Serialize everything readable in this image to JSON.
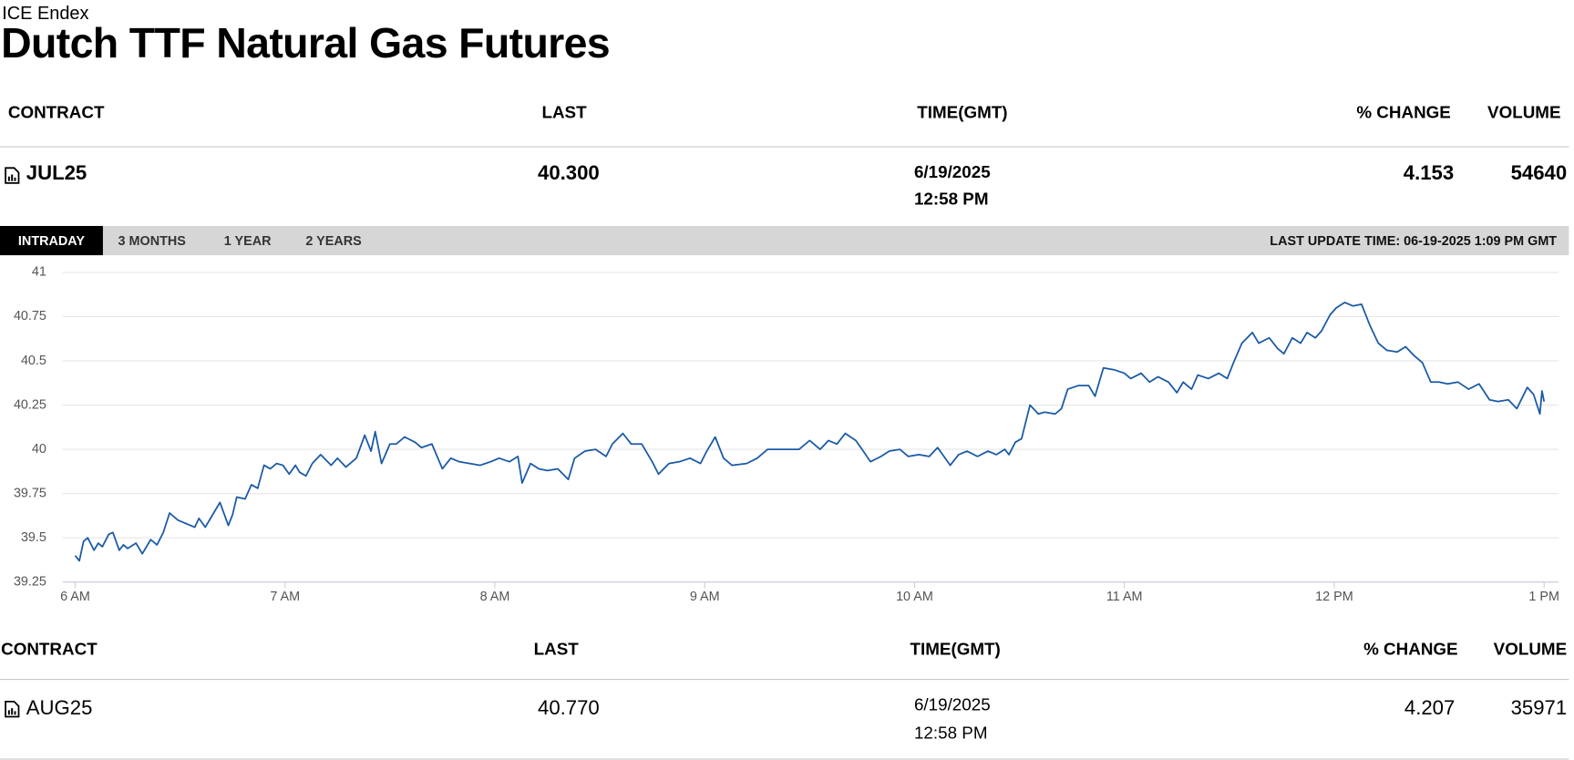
{
  "header": {
    "exchange": "ICE Endex",
    "title": "Dutch TTF Natural Gas Futures"
  },
  "quotes": [
    {
      "columns": [
        "CONTRACT",
        "LAST",
        "TIME(GMT)",
        "% CHANGE",
        "VOLUME"
      ],
      "contract": "JUL25",
      "last": "40.300",
      "date": "6/19/2025",
      "time": "12:58 PM",
      "change": 4.153,
      "volume": 54640
    },
    {
      "columns": [
        "CONTRACT",
        "LAST",
        "TIME(GMT)",
        "% CHANGE",
        "VOLUME"
      ],
      "contract": "AUG25",
      "last": "40.770",
      "date": "6/19/2025",
      "time": "12:58 PM",
      "change": 4.207,
      "volume": 35971
    }
  ],
  "tabs": [
    "INTRADAY",
    "3 MONTHS",
    "1 YEAR",
    "2 YEARS"
  ],
  "active_tab": 0,
  "last_update": "LAST UPDATE TIME: 06-19-2025 1:09 PM GMT",
  "chart_data": {
    "type": "line",
    "color": "#1a5aa6",
    "grid": true,
    "xlim": [
      5.94,
      13.07
    ],
    "xticks": [
      {
        "value": 6,
        "label": "6 AM"
      },
      {
        "value": 7,
        "label": "7 AM"
      },
      {
        "value": 8,
        "label": "8 AM"
      },
      {
        "value": 9,
        "label": "9 AM"
      },
      {
        "value": 10,
        "label": "10 AM"
      },
      {
        "value": 11,
        "label": "11 AM"
      },
      {
        "value": 12,
        "label": "12 PM"
      },
      {
        "value": 13,
        "label": "1 PM"
      }
    ],
    "ylim": [
      39.25,
      41
    ],
    "yticks": [
      39.25,
      39.5,
      39.75,
      40,
      40.25,
      40.5,
      40.75,
      41
    ],
    "x": [
      6.0,
      6.02,
      6.04,
      6.06,
      6.09,
      6.11,
      6.13,
      6.16,
      6.18,
      6.21,
      6.23,
      6.25,
      6.29,
      6.32,
      6.36,
      6.39,
      6.42,
      6.45,
      6.49,
      6.53,
      6.57,
      6.59,
      6.62,
      6.65,
      6.69,
      6.73,
      6.75,
      6.77,
      6.81,
      6.84,
      6.87,
      6.9,
      6.93,
      6.96,
      6.99,
      7.02,
      7.05,
      7.07,
      7.1,
      7.13,
      7.17,
      7.22,
      7.25,
      7.29,
      7.34,
      7.38,
      7.41,
      7.43,
      7.46,
      7.5,
      7.53,
      7.57,
      7.62,
      7.65,
      7.7,
      7.75,
      7.79,
      7.83,
      7.88,
      7.93,
      7.98,
      8.02,
      8.07,
      8.11,
      8.13,
      8.17,
      8.21,
      8.25,
      8.3,
      8.35,
      8.38,
      8.43,
      8.48,
      8.53,
      8.56,
      8.61,
      8.65,
      8.7,
      8.75,
      8.78,
      8.83,
      8.88,
      8.93,
      8.98,
      9.01,
      9.05,
      9.09,
      9.13,
      9.2,
      9.25,
      9.3,
      9.36,
      9.4,
      9.45,
      9.5,
      9.55,
      9.59,
      9.63,
      9.67,
      9.72,
      9.75,
      9.79,
      9.84,
      9.88,
      9.93,
      9.97,
      10.02,
      10.07,
      10.11,
      10.14,
      10.17,
      10.21,
      10.25,
      10.3,
      10.35,
      10.39,
      10.43,
      10.45,
      10.48,
      10.51,
      10.55,
      10.59,
      10.62,
      10.67,
      10.7,
      10.73,
      10.78,
      10.83,
      10.86,
      10.9,
      10.95,
      11.0,
      11.03,
      11.08,
      11.12,
      11.16,
      11.21,
      11.25,
      11.28,
      11.32,
      11.35,
      11.4,
      11.45,
      11.49,
      11.52,
      11.56,
      11.61,
      11.64,
      11.69,
      11.73,
      11.76,
      11.8,
      11.84,
      11.87,
      11.91,
      11.94,
      11.98,
      12.01,
      12.05,
      12.09,
      12.13,
      12.17,
      12.21,
      12.25,
      12.3,
      12.34,
      12.38,
      12.42,
      12.46,
      12.5,
      12.54,
      12.59,
      12.64,
      12.69,
      12.74,
      12.78,
      12.83,
      12.87,
      12.92,
      12.95,
      12.98,
      12.99,
      13.0
    ],
    "values": [
      39.4,
      39.37,
      39.48,
      39.5,
      39.43,
      39.47,
      39.45,
      39.52,
      39.53,
      39.43,
      39.46,
      39.44,
      39.47,
      39.41,
      39.49,
      39.46,
      39.53,
      39.64,
      39.6,
      39.58,
      39.56,
      39.61,
      39.56,
      39.62,
      39.7,
      39.57,
      39.63,
      39.73,
      39.72,
      39.8,
      39.78,
      39.91,
      39.89,
      39.92,
      39.91,
      39.86,
      39.91,
      39.87,
      39.85,
      39.92,
      39.97,
      39.91,
      39.95,
      39.9,
      39.95,
      40.08,
      39.99,
      40.1,
      39.92,
      40.03,
      40.03,
      40.07,
      40.04,
      40.01,
      40.03,
      39.89,
      39.95,
      39.93,
      39.92,
      39.91,
      39.93,
      39.95,
      39.93,
      39.96,
      39.81,
      39.92,
      39.89,
      39.88,
      39.89,
      39.83,
      39.95,
      39.99,
      40.0,
      39.96,
      40.03,
      40.09,
      40.03,
      40.03,
      39.93,
      39.86,
      39.92,
      39.93,
      39.95,
      39.92,
      39.99,
      40.07,
      39.95,
      39.91,
      39.92,
      39.95,
      40.0,
      40.0,
      40.0,
      40.0,
      40.05,
      40.0,
      40.05,
      40.03,
      40.09,
      40.05,
      40.0,
      39.93,
      39.96,
      39.99,
      40.0,
      39.96,
      39.97,
      39.96,
      40.01,
      39.96,
      39.91,
      39.97,
      39.99,
      39.96,
      39.99,
      39.97,
      40.0,
      39.97,
      40.04,
      40.06,
      40.25,
      40.2,
      40.21,
      40.2,
      40.23,
      40.34,
      40.36,
      40.36,
      40.3,
      40.46,
      40.45,
      40.43,
      40.4,
      40.43,
      40.38,
      40.41,
      40.38,
      40.32,
      40.38,
      40.34,
      40.42,
      40.4,
      40.43,
      40.4,
      40.49,
      40.6,
      40.66,
      40.6,
      40.63,
      40.57,
      40.54,
      40.63,
      40.6,
      40.66,
      40.63,
      40.67,
      40.76,
      40.8,
      40.83,
      40.81,
      40.82,
      40.7,
      40.6,
      40.56,
      40.55,
      40.58,
      40.53,
      40.49,
      40.38,
      40.38,
      40.37,
      40.38,
      40.34,
      40.37,
      40.28,
      40.27,
      40.28,
      40.23,
      40.35,
      40.31,
      40.2,
      40.33,
      40.27
    ]
  }
}
